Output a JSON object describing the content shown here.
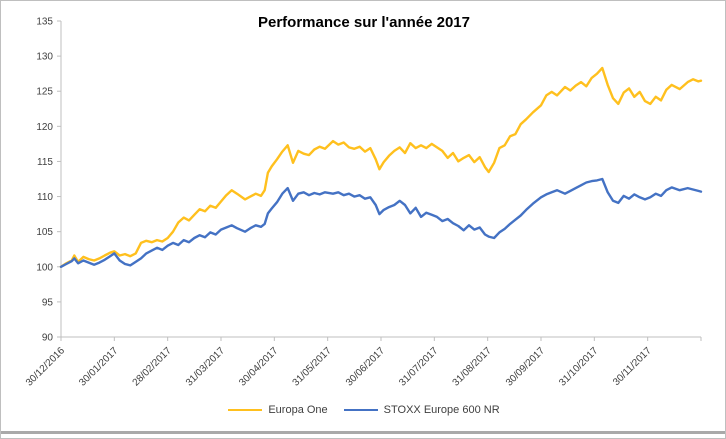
{
  "window": {
    "background": "#ffffff",
    "frame_border_color": "#bfbfbf",
    "bottom_bar_color": "#a9a9a9"
  },
  "chart_data": {
    "type": "line",
    "title": "Performance sur l'année 2017",
    "xlabel": "",
    "ylabel": "",
    "ylim": [
      90,
      135
    ],
    "y_ticks": [
      90,
      95,
      100,
      105,
      110,
      115,
      120,
      125,
      130,
      135
    ],
    "x_months_range": [
      0,
      12
    ],
    "x_tick_labels": [
      "30/12/2016",
      "30/01/2017",
      "28/02/2017",
      "31/03/2017",
      "30/04/2017",
      "31/05/2017",
      "30/06/2017",
      "31/07/2017",
      "31/08/2017",
      "30/09/2017",
      "31/10/2017",
      "30/11/2017"
    ],
    "grid": "off",
    "legend_position": "bottom",
    "axis_color": "#bfbfbf",
    "tick_label_color": "#404040",
    "x": [
      0,
      0.1,
      0.2,
      0.25,
      0.32,
      0.42,
      0.52,
      0.62,
      0.72,
      0.82,
      0.92,
      1.0,
      1.1,
      1.2,
      1.3,
      1.4,
      1.5,
      1.6,
      1.7,
      1.8,
      1.9,
      2.0,
      2.1,
      2.2,
      2.3,
      2.4,
      2.5,
      2.6,
      2.7,
      2.8,
      2.9,
      3.0,
      3.1,
      3.2,
      3.3,
      3.45,
      3.55,
      3.65,
      3.75,
      3.82,
      3.88,
      3.95,
      4.05,
      4.15,
      4.25,
      4.35,
      4.45,
      4.55,
      4.65,
      4.75,
      4.85,
      4.95,
      5.1,
      5.2,
      5.3,
      5.4,
      5.5,
      5.6,
      5.7,
      5.8,
      5.9,
      5.97,
      6.05,
      6.15,
      6.25,
      6.35,
      6.45,
      6.55,
      6.65,
      6.75,
      6.85,
      6.95,
      7.05,
      7.15,
      7.25,
      7.35,
      7.45,
      7.55,
      7.65,
      7.75,
      7.85,
      7.95,
      8.02,
      8.12,
      8.22,
      8.32,
      8.42,
      8.52,
      8.62,
      8.72,
      8.85,
      9.0,
      9.1,
      9.2,
      9.3,
      9.45,
      9.55,
      9.65,
      9.75,
      9.85,
      9.95,
      10.05,
      10.15,
      10.25,
      10.35,
      10.45,
      10.55,
      10.65,
      10.75,
      10.85,
      10.95,
      11.05,
      11.15,
      11.25,
      11.35,
      11.45,
      11.6,
      11.75,
      11.85,
      11.95,
      12.0
    ],
    "series": [
      {
        "name": "Europa One",
        "color": "#FFC01E",
        "values": [
          100.0,
          100.5,
          100.9,
          101.6,
          100.7,
          101.4,
          101.1,
          100.9,
          101.2,
          101.6,
          102.0,
          102.2,
          101.6,
          101.8,
          101.5,
          101.9,
          103.4,
          103.7,
          103.5,
          103.8,
          103.6,
          104.1,
          105.0,
          106.3,
          107.0,
          106.6,
          107.4,
          108.2,
          107.9,
          108.7,
          108.4,
          109.3,
          110.2,
          110.9,
          110.4,
          109.6,
          110.0,
          110.4,
          110.1,
          110.9,
          113.4,
          114.3,
          115.3,
          116.4,
          117.3,
          114.8,
          116.5,
          116.1,
          115.9,
          116.7,
          117.1,
          116.8,
          117.9,
          117.4,
          117.7,
          117.0,
          116.8,
          117.1,
          116.4,
          116.9,
          115.3,
          113.9,
          114.9,
          115.8,
          116.5,
          117.0,
          116.2,
          117.6,
          116.9,
          117.3,
          116.9,
          117.5,
          117.0,
          116.5,
          115.5,
          116.2,
          115.0,
          115.5,
          115.9,
          114.9,
          115.6,
          114.2,
          113.5,
          114.8,
          116.9,
          117.3,
          118.6,
          118.9,
          120.3,
          121.0,
          122.0,
          123.0,
          124.4,
          124.9,
          124.4,
          125.6,
          125.1,
          125.8,
          126.3,
          125.7,
          126.9,
          127.5,
          128.3,
          125.9,
          124.0,
          123.2,
          124.8,
          125.4,
          124.2,
          124.9,
          123.6,
          123.2,
          124.2,
          123.7,
          125.2,
          125.9,
          125.3,
          126.3,
          126.7,
          126.4,
          126.5
        ]
      },
      {
        "name": "STOXX Europe 600 NR",
        "color": "#4472C4",
        "values": [
          100.0,
          100.4,
          100.8,
          101.2,
          100.5,
          100.9,
          100.6,
          100.3,
          100.6,
          101.0,
          101.5,
          101.9,
          100.9,
          100.4,
          100.2,
          100.7,
          101.2,
          101.9,
          102.3,
          102.7,
          102.4,
          103.0,
          103.4,
          103.1,
          103.8,
          103.5,
          104.1,
          104.5,
          104.2,
          104.9,
          104.6,
          105.3,
          105.6,
          105.9,
          105.5,
          105.0,
          105.5,
          105.9,
          105.7,
          106.1,
          107.6,
          108.3,
          109.2,
          110.4,
          111.2,
          109.4,
          110.4,
          110.6,
          110.2,
          110.5,
          110.3,
          110.6,
          110.4,
          110.6,
          110.2,
          110.4,
          110.0,
          110.2,
          109.7,
          109.9,
          108.8,
          107.5,
          108.1,
          108.5,
          108.8,
          109.4,
          108.8,
          107.6,
          108.4,
          107.1,
          107.7,
          107.4,
          107.1,
          106.5,
          106.8,
          106.2,
          105.8,
          105.2,
          105.9,
          105.3,
          105.6,
          104.6,
          104.3,
          104.1,
          104.9,
          105.4,
          106.1,
          106.7,
          107.3,
          108.1,
          109.0,
          109.9,
          110.3,
          110.6,
          110.9,
          110.4,
          110.8,
          111.2,
          111.6,
          112.0,
          112.2,
          112.3,
          112.5,
          110.6,
          109.4,
          109.1,
          110.1,
          109.7,
          110.3,
          109.9,
          109.6,
          109.9,
          110.4,
          110.1,
          110.9,
          111.3,
          110.9,
          111.2,
          111.0,
          110.8,
          110.7
        ]
      }
    ]
  }
}
